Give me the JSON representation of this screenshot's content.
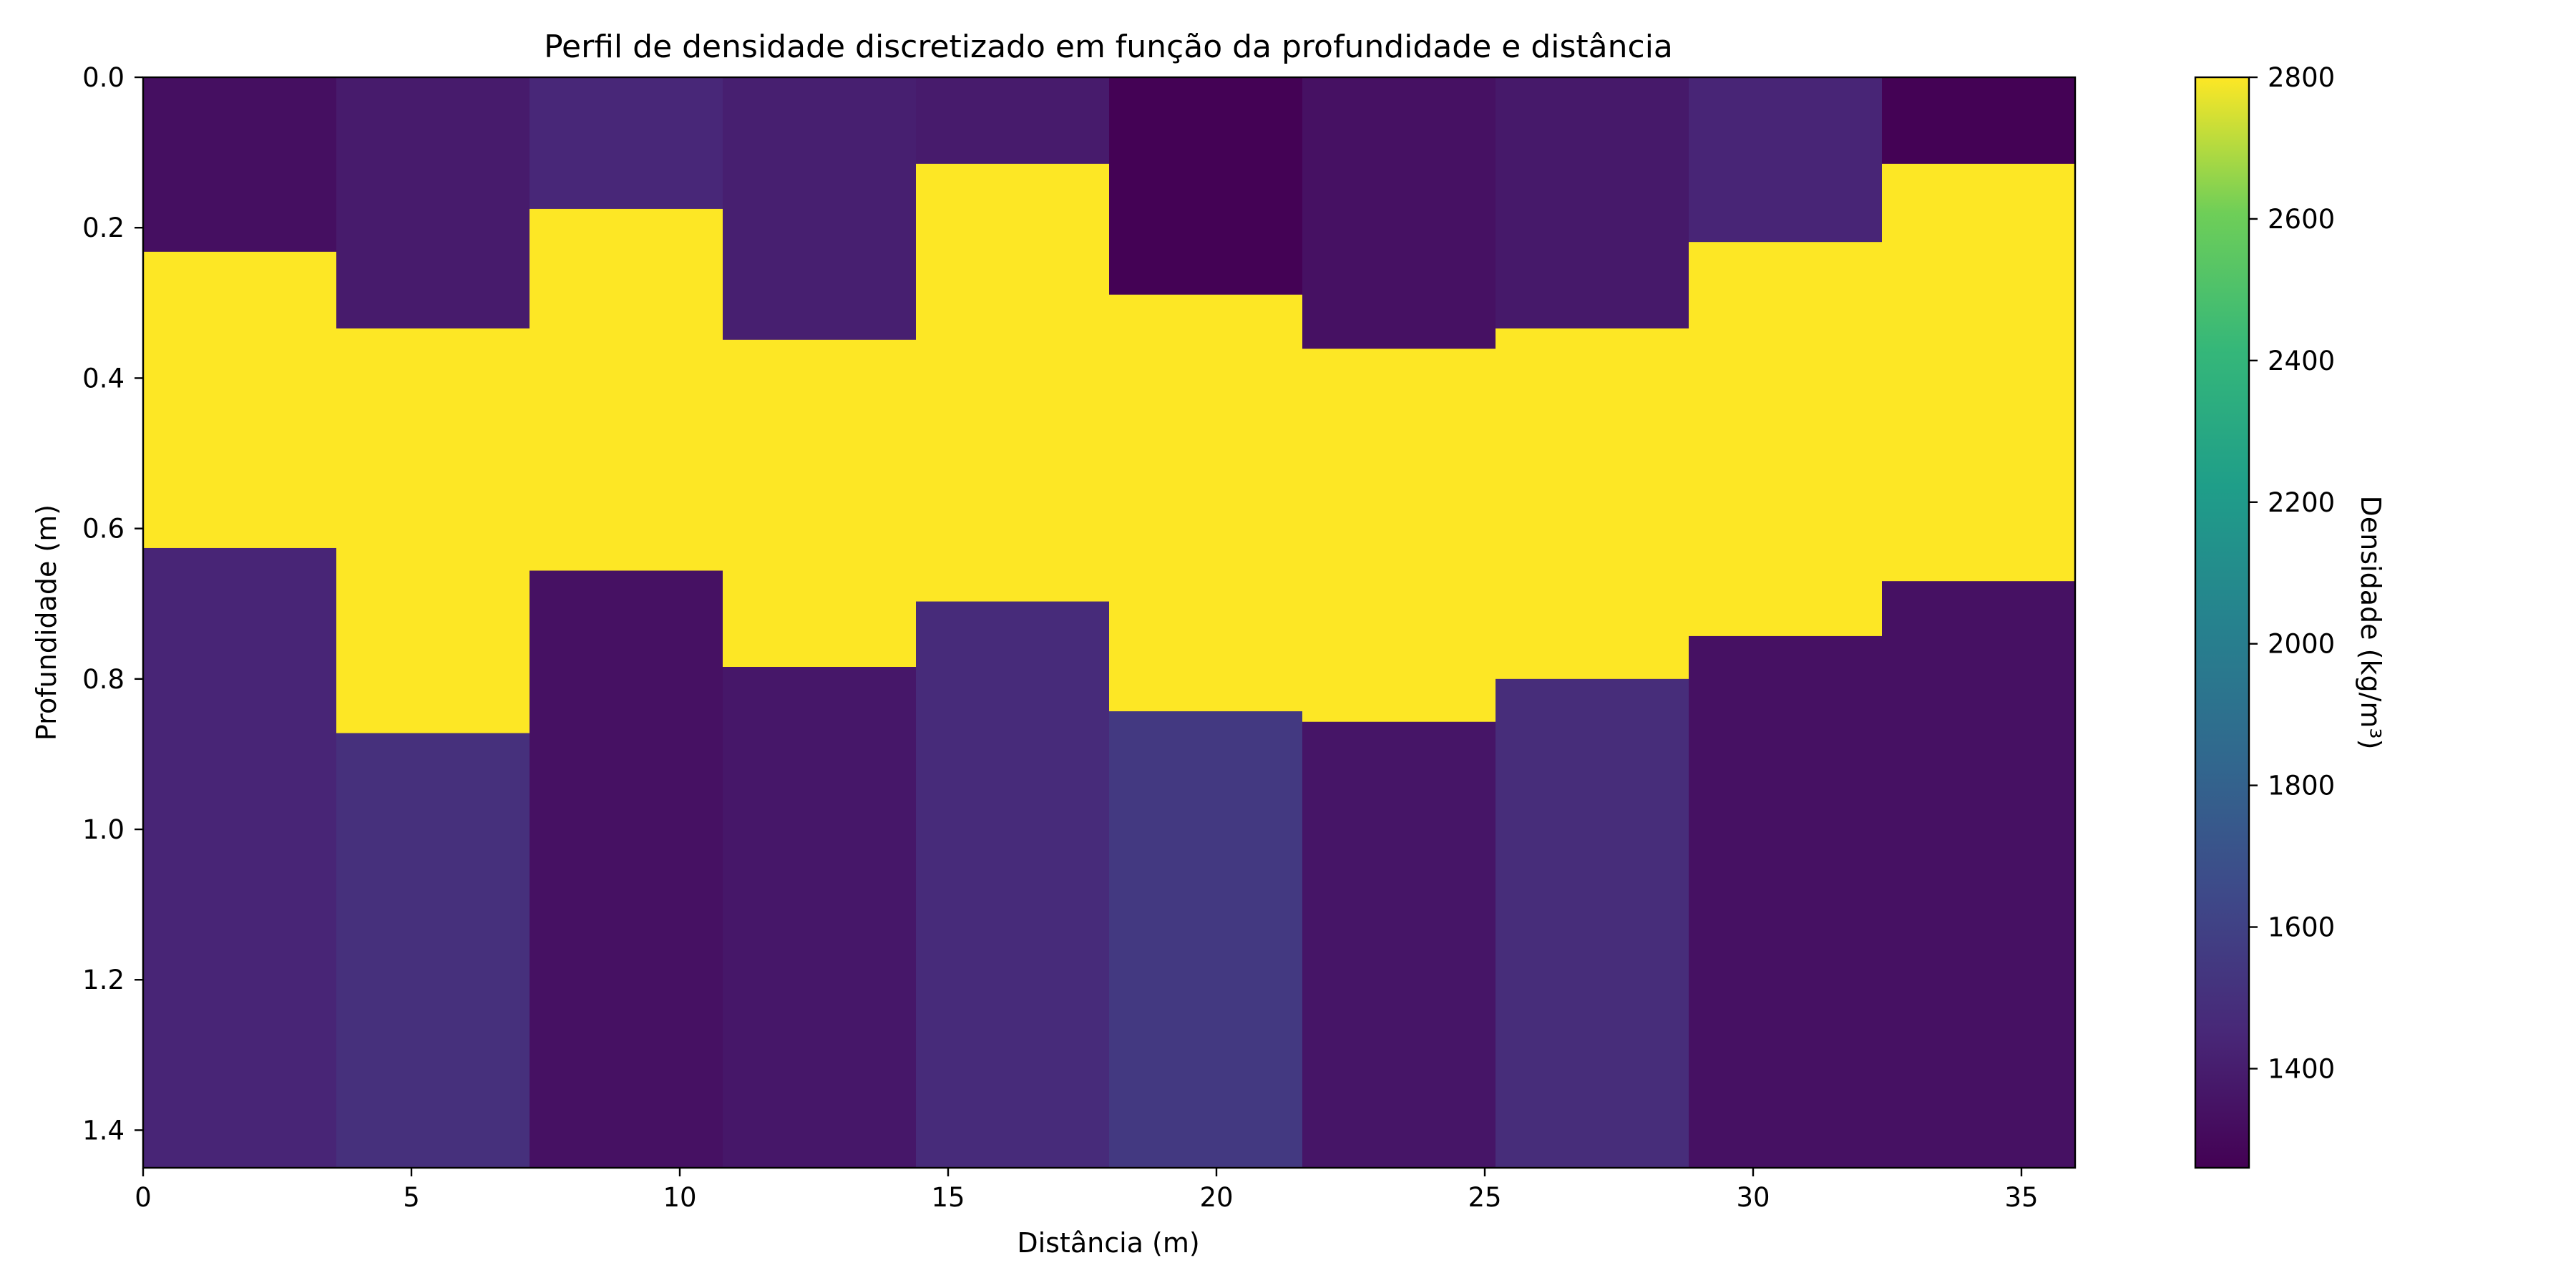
{
  "chart_data": {
    "type": "heatmap",
    "title": "Perfil de densidade discretizado em função da profundidade e distância",
    "xlabel": "Distância (m)",
    "ylabel": "Profundidade (m)",
    "colorbar_label": "Densidade (kg/m³)",
    "colormap": "viridis",
    "xlim": [
      0,
      36
    ],
    "ylim": [
      0,
      1.45
    ],
    "y_inverted": true,
    "clim": [
      1260,
      2800
    ],
    "x_ticks": [
      "0",
      "5",
      "10",
      "15",
      "20",
      "25",
      "30",
      "35"
    ],
    "y_ticks": [
      "0.0",
      "0.2",
      "0.4",
      "0.6",
      "0.8",
      "1.0",
      "1.2",
      "1.4"
    ],
    "colorbar_ticks": [
      "1400",
      "1600",
      "1800",
      "2000",
      "2200",
      "2400",
      "2600",
      "2800"
    ],
    "columns": [
      {
        "x0": 0.0,
        "x1": 3.6,
        "layers": [
          {
            "top": 0,
            "bottom": 0.232,
            "density": 1330
          },
          {
            "top": 0.232,
            "bottom": 0.626,
            "density": 2800
          },
          {
            "top": 0.626,
            "bottom": 1.45,
            "density": 1440
          }
        ]
      },
      {
        "x0": 3.6,
        "x1": 7.2,
        "layers": [
          {
            "top": 0,
            "bottom": 0.334,
            "density": 1390
          },
          {
            "top": 0.334,
            "bottom": 0.872,
            "density": 2800
          },
          {
            "top": 0.872,
            "bottom": 1.45,
            "density": 1500
          }
        ]
      },
      {
        "x0": 7.2,
        "x1": 10.8,
        "layers": [
          {
            "top": 0,
            "bottom": 0.175,
            "density": 1450
          },
          {
            "top": 0.175,
            "bottom": 0.656,
            "density": 2800
          },
          {
            "top": 0.656,
            "bottom": 1.45,
            "density": 1340
          }
        ]
      },
      {
        "x0": 10.8,
        "x1": 14.4,
        "layers": [
          {
            "top": 0,
            "bottom": 0.349,
            "density": 1410
          },
          {
            "top": 0.349,
            "bottom": 0.784,
            "density": 2800
          },
          {
            "top": 0.784,
            "bottom": 1.45,
            "density": 1370
          }
        ]
      },
      {
        "x0": 14.4,
        "x1": 18.0,
        "layers": [
          {
            "top": 0,
            "bottom": 0.115,
            "density": 1390
          },
          {
            "top": 0.115,
            "bottom": 0.697,
            "density": 2800
          },
          {
            "top": 0.697,
            "bottom": 1.45,
            "density": 1470
          }
        ]
      },
      {
        "x0": 18.0,
        "x1": 21.6,
        "layers": [
          {
            "top": 0,
            "bottom": 0.289,
            "density": 1265
          },
          {
            "top": 0.289,
            "bottom": 0.843,
            "density": 2800
          },
          {
            "top": 0.843,
            "bottom": 1.45,
            "density": 1550
          }
        ]
      },
      {
        "x0": 21.6,
        "x1": 25.2,
        "layers": [
          {
            "top": 0,
            "bottom": 0.361,
            "density": 1340
          },
          {
            "top": 0.361,
            "bottom": 0.857,
            "density": 2800
          },
          {
            "top": 0.857,
            "bottom": 1.45,
            "density": 1360
          }
        ]
      },
      {
        "x0": 25.2,
        "x1": 28.8,
        "layers": [
          {
            "top": 0,
            "bottom": 0.334,
            "density": 1380
          },
          {
            "top": 0.334,
            "bottom": 0.8,
            "density": 2800
          },
          {
            "top": 0.8,
            "bottom": 1.45,
            "density": 1480
          }
        ]
      },
      {
        "x0": 28.8,
        "x1": 32.4,
        "layers": [
          {
            "top": 0,
            "bottom": 0.219,
            "density": 1440
          },
          {
            "top": 0.219,
            "bottom": 0.743,
            "density": 2800
          },
          {
            "top": 0.743,
            "bottom": 1.45,
            "density": 1340
          }
        ]
      },
      {
        "x0": 32.4,
        "x1": 36.0,
        "layers": [
          {
            "top": 0,
            "bottom": 0.115,
            "density": 1265
          },
          {
            "top": 0.115,
            "bottom": 0.67,
            "density": 2800
          },
          {
            "top": 0.67,
            "bottom": 1.45,
            "density": 1340
          }
        ]
      }
    ]
  }
}
